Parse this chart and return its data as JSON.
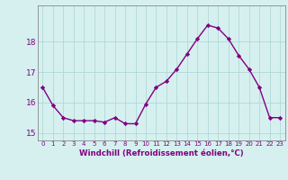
{
  "x": [
    0,
    1,
    2,
    3,
    4,
    5,
    6,
    7,
    8,
    9,
    10,
    11,
    12,
    13,
    14,
    15,
    16,
    17,
    18,
    19,
    20,
    21,
    22,
    23
  ],
  "y": [
    16.5,
    15.9,
    15.5,
    15.4,
    15.4,
    15.4,
    15.35,
    15.5,
    15.3,
    15.3,
    15.95,
    16.5,
    16.7,
    17.1,
    17.6,
    18.1,
    18.55,
    18.45,
    18.1,
    17.55,
    17.1,
    16.5,
    15.5,
    15.5
  ],
  "ylim": [
    14.75,
    19.2
  ],
  "yticks": [
    15,
    16,
    17,
    18
  ],
  "xticks": [
    0,
    1,
    2,
    3,
    4,
    5,
    6,
    7,
    8,
    9,
    10,
    11,
    12,
    13,
    14,
    15,
    16,
    17,
    18,
    19,
    20,
    21,
    22,
    23
  ],
  "xlabel": "Windchill (Refroidissement éolien,°C)",
  "line_color": "#800080",
  "marker": "D",
  "marker_size": 2.2,
  "bg_color": "#d6f0f0",
  "grid_color": "#b0d8d8",
  "tick_color": "#800080",
  "label_color": "#800080",
  "tick_fontsize": 5.0,
  "ytick_fontsize": 6.5,
  "xlabel_fontsize": 6.2,
  "linewidth": 1.0
}
